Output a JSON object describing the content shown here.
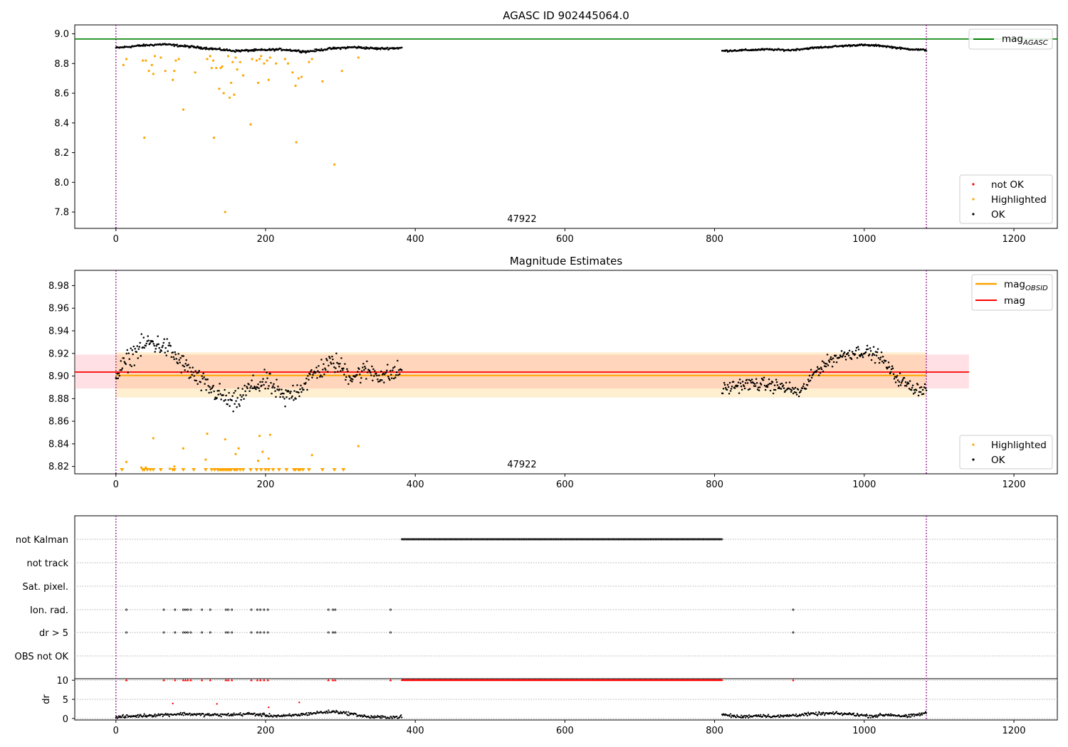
{
  "chart_data": [
    {
      "type": "scatter",
      "title": "AGASC ID 902445064.0",
      "annotation": "47922",
      "xlim": [
        -55,
        1258
      ],
      "ylim": [
        7.69,
        9.06
      ],
      "xticks": [
        0,
        200,
        400,
        600,
        800,
        1000,
        1200
      ],
      "yticks": [
        7.8,
        8.0,
        8.2,
        8.4,
        8.6,
        8.8,
        9.0
      ],
      "hlines": [
        {
          "name": "mag_AGASC",
          "label": "mag",
          "subscript": "AGASC",
          "y": 8.965,
          "color": "#008000"
        }
      ],
      "vlines": [
        0,
        1083
      ],
      "legend_top": [
        {
          "label": "mag",
          "subscript": "AGASC",
          "color": "#008000",
          "kind": "line"
        }
      ],
      "legend_bottom": [
        {
          "label": "not OK",
          "color": "#ff0000",
          "kind": "dot"
        },
        {
          "label": "Highlighted",
          "color": "#ffa500",
          "kind": "dot"
        },
        {
          "label": "OK",
          "color": "#000000",
          "kind": "dot"
        }
      ],
      "segments": [
        {
          "x": [
            0,
            382
          ],
          "ylevels": [
            8.905,
            8.92,
            8.93,
            8.915,
            8.9,
            8.885,
            8.89,
            8.895,
            8.88,
            8.9,
            8.91,
            8.9,
            8.905
          ],
          "noise": 0.006,
          "color": "#000000",
          "series": "OK"
        },
        {
          "x": [
            810,
            1083
          ],
          "ylevels": [
            8.885,
            8.89,
            8.895,
            8.89,
            8.905,
            8.915,
            8.925,
            8.92,
            8.9,
            8.89
          ],
          "noise": 0.005,
          "color": "#000000",
          "series": "OK"
        }
      ],
      "highlighted": [
        [
          10,
          8.79
        ],
        [
          14,
          8.83
        ],
        [
          36,
          8.82
        ],
        [
          38,
          8.3
        ],
        [
          40,
          8.82
        ],
        [
          44,
          8.75
        ],
        [
          48,
          8.79
        ],
        [
          50,
          8.73
        ],
        [
          52,
          8.85
        ],
        [
          60,
          8.84
        ],
        [
          66,
          8.75
        ],
        [
          76,
          8.69
        ],
        [
          78,
          8.75
        ],
        [
          80,
          8.82
        ],
        [
          84,
          8.83
        ],
        [
          90,
          8.49
        ],
        [
          106,
          8.74
        ],
        [
          122,
          8.83
        ],
        [
          126,
          8.85
        ],
        [
          128,
          8.77
        ],
        [
          130,
          8.82
        ],
        [
          131,
          8.3
        ],
        [
          134,
          8.77
        ],
        [
          138,
          8.63
        ],
        [
          140,
          8.77
        ],
        [
          142,
          8.78
        ],
        [
          144,
          8.6
        ],
        [
          146,
          7.8
        ],
        [
          150,
          8.85
        ],
        [
          152,
          8.57
        ],
        [
          154,
          8.67
        ],
        [
          156,
          8.81
        ],
        [
          158,
          8.59
        ],
        [
          160,
          8.84
        ],
        [
          162,
          8.76
        ],
        [
          166,
          8.81
        ],
        [
          170,
          8.72
        ],
        [
          180,
          8.39
        ],
        [
          182,
          8.83
        ],
        [
          188,
          8.82
        ],
        [
          190,
          8.67
        ],
        [
          192,
          8.83
        ],
        [
          194,
          8.85
        ],
        [
          198,
          8.8
        ],
        [
          202,
          8.82
        ],
        [
          204,
          8.69
        ],
        [
          206,
          8.84
        ],
        [
          214,
          8.8
        ],
        [
          226,
          8.83
        ],
        [
          230,
          8.8
        ],
        [
          236,
          8.74
        ],
        [
          240,
          8.65
        ],
        [
          241,
          8.27
        ],
        [
          244,
          8.7
        ],
        [
          248,
          8.71
        ],
        [
          258,
          8.81
        ],
        [
          262,
          8.83
        ],
        [
          276,
          8.68
        ],
        [
          292,
          8.12
        ],
        [
          302,
          8.75
        ],
        [
          324,
          8.84
        ]
      ]
    },
    {
      "type": "scatter",
      "title": "Magnitude Estimates",
      "annotation": "47922",
      "xlim": [
        -55,
        1258
      ],
      "ylim": [
        8.8135,
        8.9935
      ],
      "xticks": [
        0,
        200,
        400,
        600,
        800,
        1000,
        1200
      ],
      "yticks": [
        8.82,
        8.84,
        8.86,
        8.88,
        8.9,
        8.92,
        8.94,
        8.96,
        8.98
      ],
      "ytick_labels": [
        "8.82",
        "8.84",
        "8.86",
        "8.88",
        "8.90",
        "8.92",
        "8.94",
        "8.96",
        "8.98"
      ],
      "bands": [
        {
          "x": [
            -55,
            1140
          ],
          "y": [
            8.889,
            8.919
          ],
          "color": "#ff9da8",
          "opacity": 0.3
        },
        {
          "x": [
            0,
            1083
          ],
          "y": [
            8.881,
            8.921
          ],
          "color": "#ffa500",
          "opacity": 0.18
        }
      ],
      "hlines": [
        {
          "name": "mag_OBSID",
          "y": 8.9005,
          "x": [
            0,
            1083
          ],
          "color": "#ffa500",
          "width": 2
        },
        {
          "name": "mag",
          "y": 8.9035,
          "x": [
            -55,
            1140
          ],
          "color": "#ff0000",
          "width": 1.8
        }
      ],
      "vlines": [
        0,
        1083
      ],
      "legend_top": [
        {
          "label": "mag",
          "subscript": "OBSID",
          "color": "#ffa500",
          "kind": "line"
        },
        {
          "label": "mag",
          "color": "#ff0000",
          "kind": "line"
        }
      ],
      "legend_bottom": [
        {
          "label": "Highlighted",
          "color": "#ffa500",
          "kind": "dot"
        },
        {
          "label": "OK",
          "color": "#000000",
          "kind": "dot"
        }
      ],
      "segments": [
        {
          "x": [
            0,
            382
          ],
          "ylevels": [
            8.9,
            8.92,
            8.93,
            8.925,
            8.91,
            8.895,
            8.885,
            8.875,
            8.89,
            8.895,
            8.88,
            8.89,
            8.905,
            8.912,
            8.9,
            8.905,
            8.9,
            8.905
          ],
          "noise": 0.008,
          "color": "#000000",
          "series": "OK"
        },
        {
          "x": [
            810,
            1083
          ],
          "ylevels": [
            8.888,
            8.892,
            8.893,
            8.892,
            8.89,
            8.885,
            8.905,
            8.915,
            8.92,
            8.922,
            8.918,
            8.9,
            8.89,
            8.888
          ],
          "noise": 0.005,
          "color": "#000000",
          "series": "OK"
        }
      ],
      "highlighted": [
        [
          14,
          8.824
        ],
        [
          34,
          8.819
        ],
        [
          40,
          8.819
        ],
        [
          50,
          8.845
        ],
        [
          72,
          8.818
        ],
        [
          78,
          8.82
        ],
        [
          90,
          8.836
        ],
        [
          120,
          8.826
        ],
        [
          122,
          8.849
        ],
        [
          146,
          8.844
        ],
        [
          160,
          8.831
        ],
        [
          164,
          8.836
        ],
        [
          190,
          8.825
        ],
        [
          192,
          8.847
        ],
        [
          196,
          8.833
        ],
        [
          204,
          8.827
        ],
        [
          206,
          8.848
        ],
        [
          262,
          8.83
        ],
        [
          324,
          8.838
        ]
      ],
      "highlighted_below": [
        8,
        36,
        38,
        42,
        46,
        50,
        60,
        76,
        78,
        90,
        104,
        120,
        128,
        132,
        136,
        138,
        140,
        142,
        144,
        146,
        148,
        150,
        152,
        154,
        158,
        160,
        162,
        166,
        170,
        180,
        188,
        194,
        200,
        204,
        210,
        218,
        228,
        238,
        240,
        244,
        246,
        250,
        258,
        276,
        292,
        304
      ]
    },
    {
      "type": "scatter",
      "title": "",
      "xlim": [
        -55,
        1258
      ],
      "xticks": [
        0,
        200,
        400,
        600,
        800,
        1000,
        1200
      ],
      "vlines": [
        0,
        1083
      ],
      "flag_rows": [
        "not Kalman",
        "not track",
        "Sat. pixel.",
        "Ion. rad.",
        "dr > 5",
        "OBS not OK"
      ],
      "flags": {
        "not Kalman": {
          "x_range": [
            382,
            810
          ]
        },
        "not track": {
          "x": []
        },
        "Sat. pixel.": {
          "x": []
        },
        "Ion. rad.": {
          "x": [
            14,
            64,
            79,
            90,
            93,
            96,
            100,
            115,
            126,
            147,
            150,
            155,
            181,
            189,
            193,
            198,
            203,
            284,
            290,
            293,
            367,
            905
          ]
        },
        "dr > 5": {
          "x": [
            14,
            64,
            79,
            90,
            93,
            96,
            100,
            115,
            126,
            147,
            150,
            155,
            181,
            189,
            193,
            198,
            203,
            284,
            290,
            293,
            367,
            905
          ]
        },
        "OBS not OK": {
          "x": []
        }
      },
      "dr_panel": {
        "ylabel": "dr",
        "ylim": [
          -0.4,
          10.4
        ],
        "yticks": [
          0,
          5,
          10
        ],
        "cap": 10,
        "segments": [
          {
            "x": [
              0,
              382
            ],
            "ylevels": [
              0.3,
              0.6,
              0.8,
              1.0,
              1.2,
              1.0,
              0.9,
              1.0,
              1.2,
              0.8,
              0.6,
              1.0,
              1.5,
              1.8,
              1.2,
              0.4,
              0.3,
              0.4
            ]
          },
          {
            "x": [
              810,
              1083
            ],
            "ylevels": [
              1.0,
              0.4,
              0.8,
              0.5,
              0.9,
              1.2,
              1.3,
              1.1,
              0.6,
              1.0,
              0.5,
              1.4
            ]
          }
        ],
        "red_points": [
          [
            14,
            10
          ],
          [
            64,
            10
          ],
          [
            76,
            3.9
          ],
          [
            79,
            10
          ],
          [
            90,
            10
          ],
          [
            93,
            10
          ],
          [
            96,
            10
          ],
          [
            100,
            10
          ],
          [
            115,
            10
          ],
          [
            126,
            10
          ],
          [
            135,
            3.8
          ],
          [
            147,
            10
          ],
          [
            150,
            10
          ],
          [
            155,
            10
          ],
          [
            181,
            10
          ],
          [
            189,
            10
          ],
          [
            193,
            10
          ],
          [
            198,
            10
          ],
          [
            203,
            10
          ],
          [
            204,
            2.9
          ],
          [
            245,
            4.2
          ],
          [
            284,
            10
          ],
          [
            290,
            10
          ],
          [
            293,
            10
          ],
          [
            367,
            10
          ],
          [
            905,
            10
          ]
        ],
        "red_range": [
          382,
          810
        ]
      }
    }
  ]
}
